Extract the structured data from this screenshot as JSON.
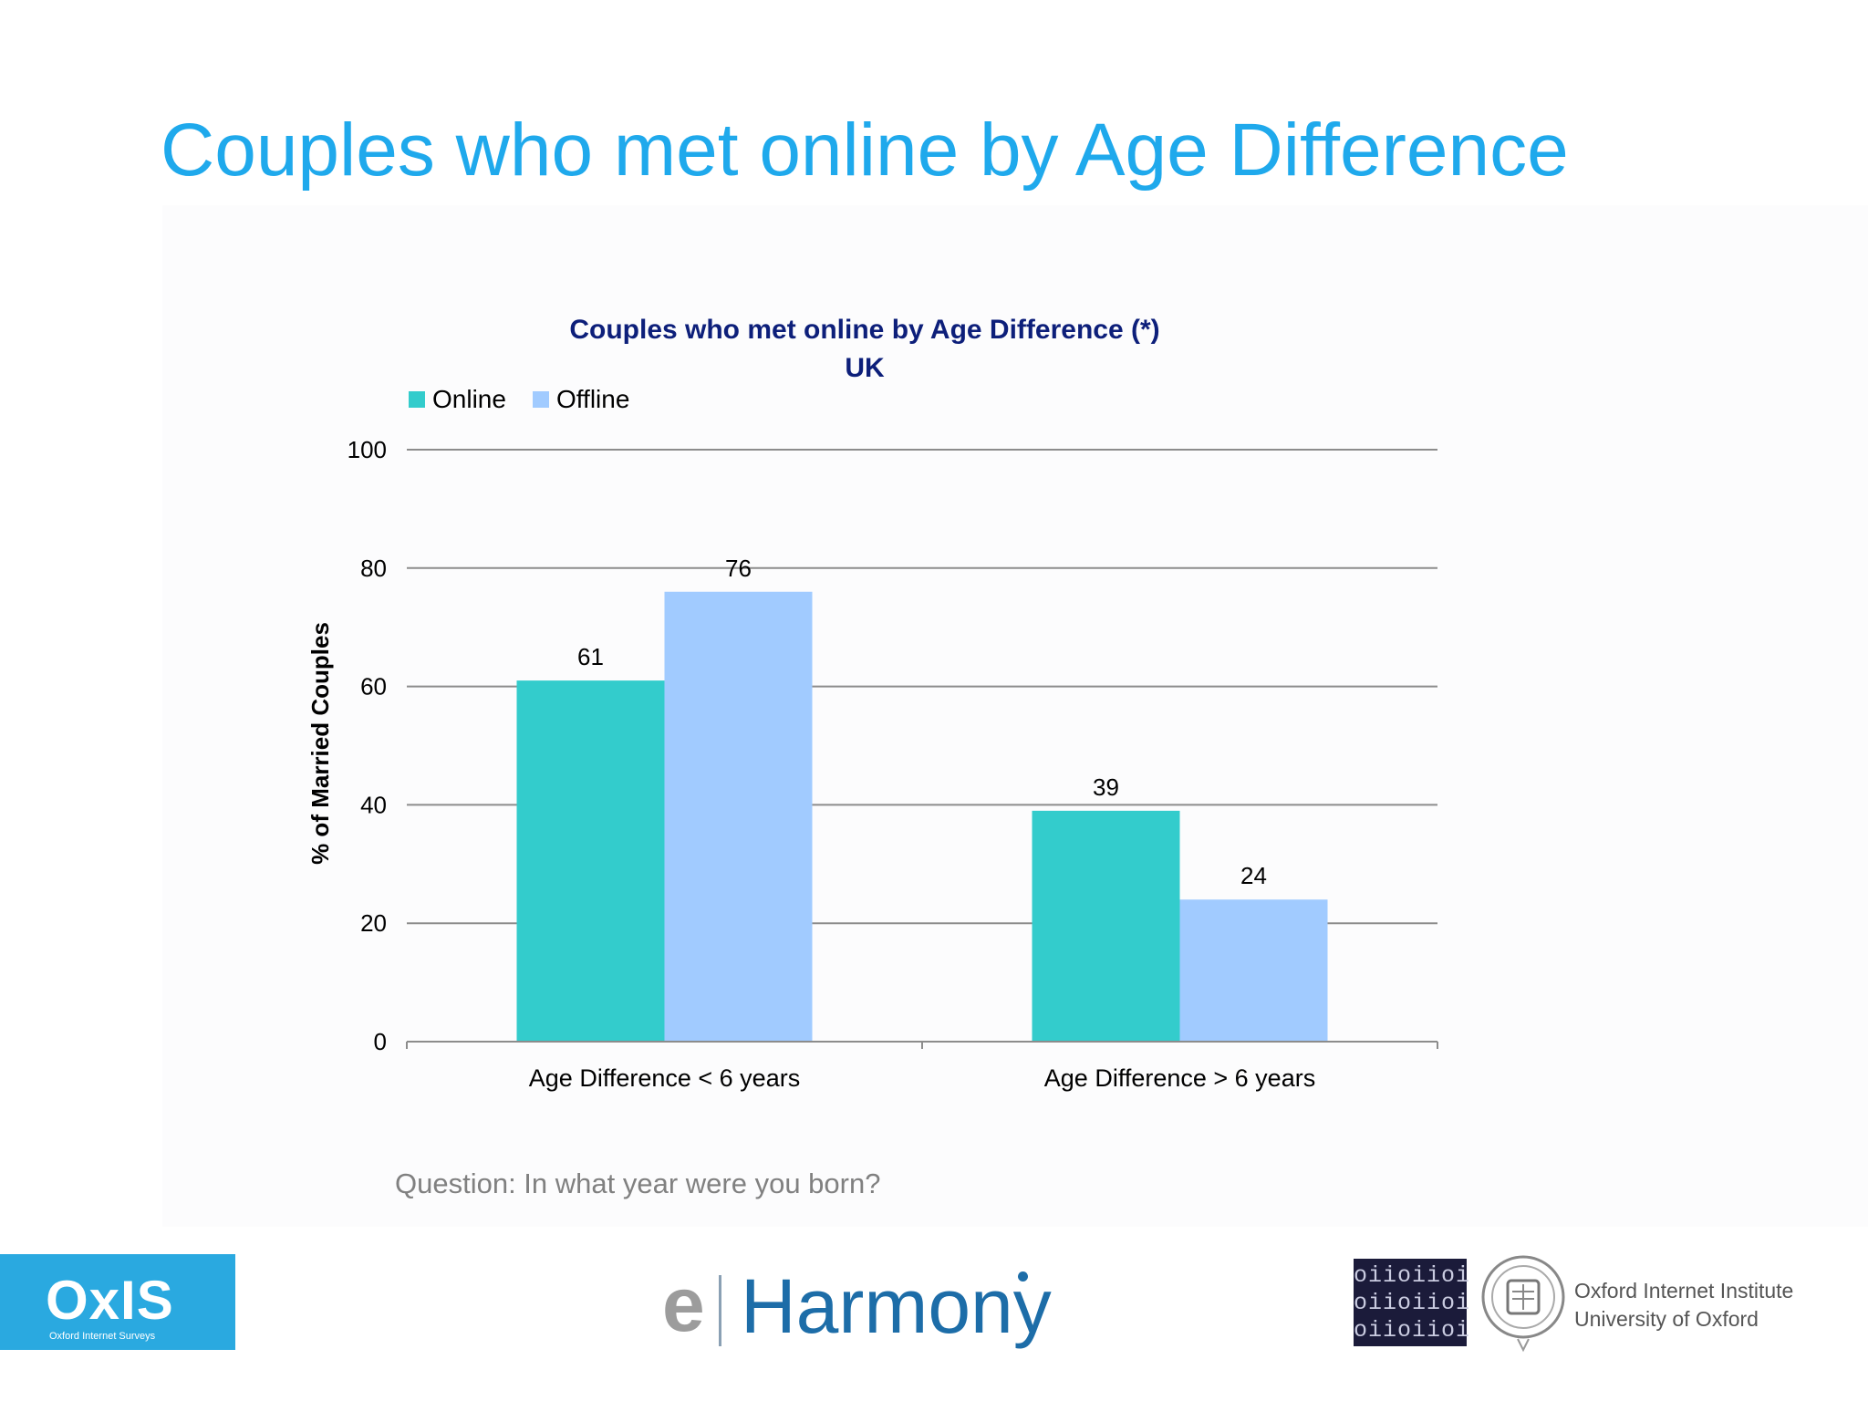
{
  "slide": {
    "title": "Couples who met online by Age Difference",
    "question": "Question: In what year were you born?"
  },
  "chart_data": {
    "type": "bar",
    "title": "Couples who met online by Age Difference (*)",
    "subtitle": "UK",
    "xlabel": "",
    "ylabel": "% of Married Couples",
    "categories": [
      "Age Difference < 6 years",
      "Age Difference > 6 years"
    ],
    "series": [
      {
        "name": "Online",
        "values": [
          61,
          39
        ],
        "color": "#33cccc"
      },
      {
        "name": "Offline",
        "values": [
          76,
          24
        ],
        "color": "#a1cbff"
      }
    ],
    "ylim": [
      0,
      100
    ],
    "yticks": [
      0,
      20,
      40,
      60,
      80,
      100
    ],
    "grid": true,
    "legend": "top-left",
    "data_labels": true
  },
  "logos": {
    "oxis": {
      "word": "OxIS",
      "sub": "Oxford Internet Surveys"
    },
    "eharmony": {
      "e": "e",
      "word": "Harmony"
    },
    "oii": {
      "binary_lines": [
        "oiioiioi",
        "oiioiioi",
        "oiioiioi"
      ],
      "line1": "Oxford Internet Institute",
      "line2": "University of Oxford"
    }
  },
  "colors": {
    "title": "#1fa9ec",
    "chart_title": "#0d1f7a",
    "online": "#33cccc",
    "offline": "#a1cbff"
  }
}
